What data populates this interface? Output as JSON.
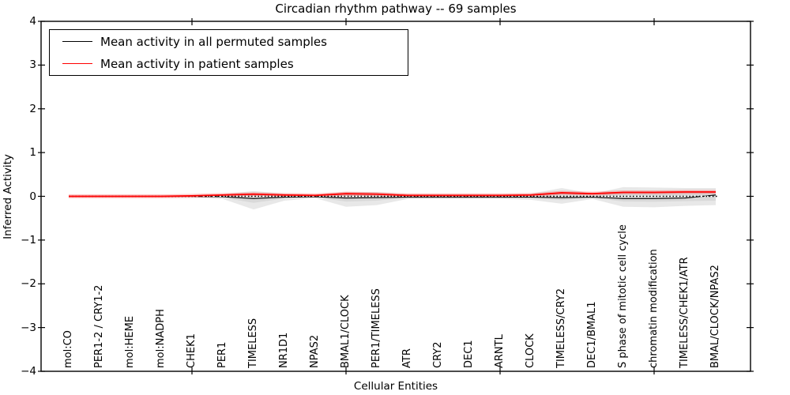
{
  "chart_data": {
    "type": "line",
    "title": "Circadian rhythm pathway -- 69 samples",
    "xlabel": "Cellular Entities",
    "ylabel": "Inferred Activity",
    "ylim": [
      -4,
      4
    ],
    "grid": false,
    "legend_position": "upper left",
    "yticks": {
      "values": [
        4,
        3,
        2,
        1,
        0,
        -1,
        -2,
        -3,
        -4
      ],
      "labels": [
        "4",
        "3",
        "2",
        "1",
        "0",
        "−1",
        "−2",
        "−3",
        "−4"
      ]
    },
    "xtick_category_indices": [
      4,
      9,
      14,
      19
    ],
    "categories": [
      "mol:CO",
      "PER1-2 / CRY1-2",
      "mol:HEME",
      "mol:NADPH",
      "CHEK1",
      "PER1",
      "TIMELESS",
      "NR1D1",
      "NPAS2",
      "BMAL1/CLOCK",
      "PER1/TIMELESS",
      "ATR",
      "CRY2",
      "DEC1",
      "ARNTL",
      "CLOCK",
      "TIMELESS/CRY2",
      "DEC1/BMAL1",
      "S phase of mitotic cell cycle",
      "chromatin modification",
      "TIMELESS/CHEK1/ATR",
      "BMAL/CLOCK/NPAS2"
    ],
    "series": [
      {
        "name": "Mean activity in all permuted samples",
        "color": "#000000",
        "style": "solid",
        "values": [
          0.0,
          0.0,
          0.0,
          0.0,
          0.0,
          -0.01,
          -0.05,
          -0.02,
          -0.01,
          -0.04,
          -0.03,
          -0.02,
          -0.02,
          -0.02,
          -0.02,
          -0.02,
          -0.03,
          -0.02,
          -0.05,
          -0.05,
          -0.04,
          0.03
        ]
      },
      {
        "name": "Mean activity in patient samples",
        "color": "#ff0000",
        "style": "solid",
        "values": [
          0.0,
          0.0,
          0.0,
          0.0,
          0.01,
          0.03,
          0.05,
          0.03,
          0.02,
          0.06,
          0.05,
          0.02,
          0.02,
          0.02,
          0.02,
          0.03,
          0.08,
          0.06,
          0.09,
          0.09,
          0.1,
          0.1
        ]
      }
    ],
    "band": {
      "name": "permutation range",
      "color": "#c8c8c8",
      "upper": [
        0.02,
        0.02,
        0.02,
        0.02,
        0.03,
        0.05,
        0.12,
        0.06,
        0.04,
        0.1,
        0.1,
        0.05,
        0.05,
        0.05,
        0.05,
        0.06,
        0.19,
        0.06,
        0.21,
        0.2,
        0.19,
        0.19
      ],
      "lower": [
        -0.02,
        -0.02,
        -0.02,
        -0.02,
        -0.03,
        -0.06,
        -0.3,
        -0.1,
        -0.04,
        -0.24,
        -0.2,
        -0.06,
        -0.06,
        -0.06,
        -0.06,
        -0.08,
        -0.17,
        -0.06,
        -0.24,
        -0.25,
        -0.22,
        -0.2
      ]
    },
    "zero_line": {
      "y": 0,
      "style": "dotted",
      "color": "#000000"
    }
  },
  "legend": {
    "items": [
      {
        "label": "Mean activity in all permuted samples",
        "color": "#000000"
      },
      {
        "label": "Mean activity in patient samples",
        "color": "#ff0000"
      }
    ]
  }
}
